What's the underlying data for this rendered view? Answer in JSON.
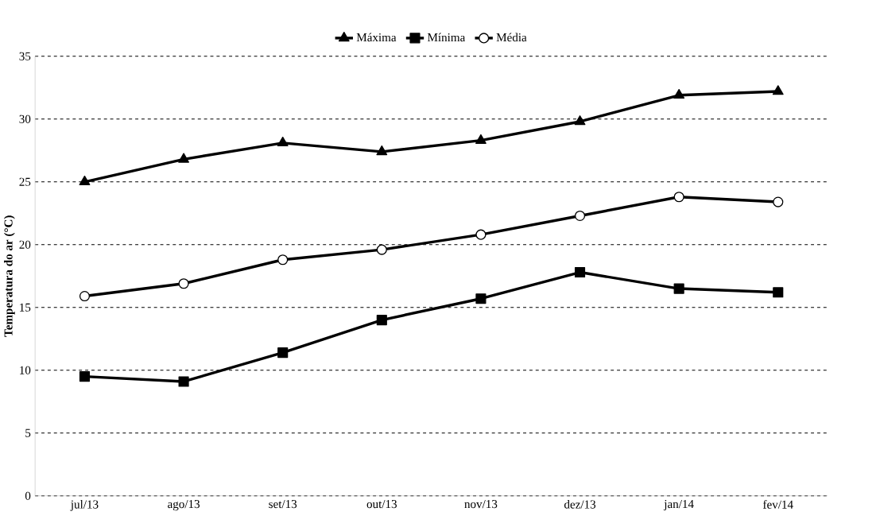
{
  "chart_data": {
    "type": "line",
    "categories": [
      "jul/13",
      "ago/13",
      "set/13",
      "out/13",
      "nov/13",
      "dez/13",
      "jan/14",
      "fev/14"
    ],
    "ylabel": "Temperatura do ar (°C)",
    "series": [
      {
        "name": "Máxima",
        "color": "#000000",
        "marker": "triangle",
        "values": [
          25.0,
          26.8,
          28.1,
          27.4,
          28.3,
          29.8,
          31.9,
          32.2
        ]
      },
      {
        "name": "Mínima",
        "color": "#000000",
        "marker": "square",
        "values": [
          9.5,
          9.1,
          11.4,
          14.0,
          15.7,
          17.8,
          16.5,
          16.2
        ]
      },
      {
        "name": "Média",
        "color": "#000000",
        "marker": "circle",
        "values": [
          15.9,
          16.9,
          18.8,
          19.6,
          20.8,
          22.3,
          23.8,
          23.4
        ]
      }
    ],
    "ylim": [
      0,
      35
    ],
    "yticks": [
      0,
      5,
      10,
      15,
      20,
      25,
      30,
      35
    ],
    "grid": "y",
    "legend": "top",
    "line_style": "solid"
  }
}
